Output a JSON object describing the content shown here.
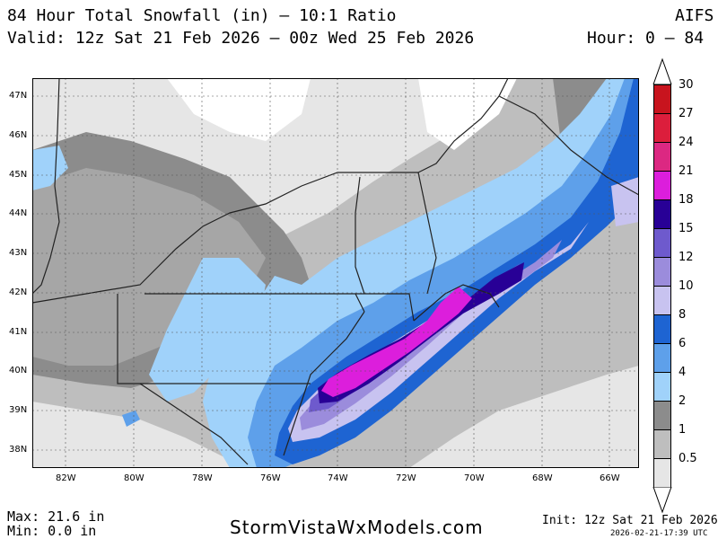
{
  "header": {
    "title": "84 Hour Total Snowfall (in) – 10:1 Ratio",
    "model": "AIFS",
    "valid": "Valid: 12z Sat 21 Feb 2026 – 00z Wed 25 Feb 2026",
    "hours": "Hour: 0 – 84"
  },
  "map": {
    "lat_labels": [
      "47N",
      "46N",
      "45N",
      "44N",
      "43N",
      "42N",
      "41N",
      "40N",
      "39N",
      "38N"
    ],
    "lon_labels": [
      "82W",
      "80W",
      "78W",
      "76W",
      "74W",
      "72W",
      "70W",
      "68W",
      "66W"
    ]
  },
  "colorbar": {
    "levels": [
      {
        "label": "30",
        "color": "#c8141e"
      },
      {
        "label": "27",
        "color": "#dc1e3c"
      },
      {
        "label": "24",
        "color": "#dc2882"
      },
      {
        "label": "21",
        "color": "#dc1edc"
      },
      {
        "label": "18",
        "color": "#280096"
      },
      {
        "label": "15",
        "color": "#6e5acd"
      },
      {
        "label": "12",
        "color": "#9b8cdc"
      },
      {
        "label": "10",
        "color": "#c8c3f0"
      },
      {
        "label": "8",
        "color": "#1e64d2"
      },
      {
        "label": "6",
        "color": "#5ea0ea"
      },
      {
        "label": "4",
        "color": "#a0d2fa"
      },
      {
        "label": "2",
        "color": "#8c8c8c"
      },
      {
        "label": "1",
        "color": "#bebebe"
      },
      {
        "label": "0.5",
        "color": "#e6e6e6"
      }
    ]
  },
  "footer": {
    "max": "Max: 21.6 in",
    "min": "Min: 0.0 in",
    "brand": "StormVistaWxModels.com",
    "init": "Init: 12z Sat 21 Feb 2026",
    "stamp": "2026-02-21-17:39 UTC"
  }
}
